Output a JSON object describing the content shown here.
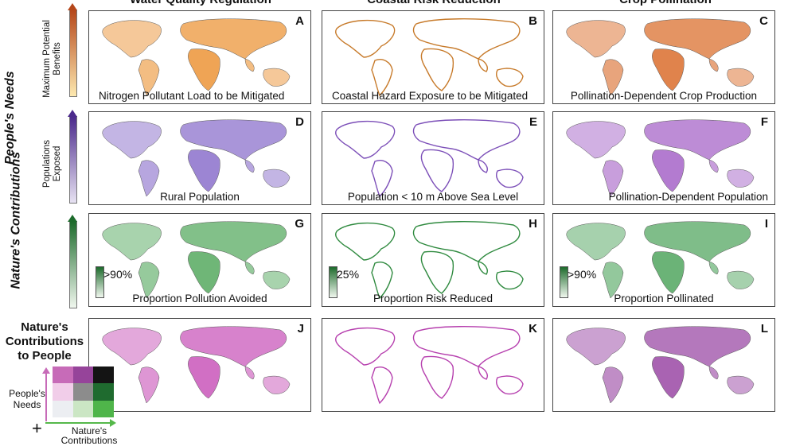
{
  "columns": [
    {
      "title": "Water Quality Regulation"
    },
    {
      "title": "Coastal Risk Reduction"
    },
    {
      "title": "Crop Pollination"
    }
  ],
  "rows": {
    "needs_title": "People's Needs",
    "contributions_title": "Nature's Contributions",
    "benefits_label": "Maximum Potential Benefits",
    "populations_label": "Populations Exposed"
  },
  "panels": [
    {
      "letter": "A",
      "caption": "Nitrogen Pollutant Load to be Mitigated",
      "color": "#e9861c"
    },
    {
      "letter": "B",
      "caption": "Coastal Hazard Exposure to be Mitigated",
      "color": "#c77a2a"
    },
    {
      "letter": "C",
      "caption": "Pollination-Dependent Crop Production",
      "color": "#d65a10"
    },
    {
      "letter": "D",
      "caption": "Rural Population",
      "color": "#7b5cc4"
    },
    {
      "letter": "E",
      "caption": "Population < 10 m Above Sea Level",
      "color": "#7c4fb8"
    },
    {
      "letter": "F",
      "caption": "Pollination-Dependent Population",
      "color": "#9a4fc0"
    },
    {
      "letter": "G",
      "caption": "Proportion Pollution Avoided",
      "color": "#3f9e4a",
      "legend": ">90%"
    },
    {
      "letter": "H",
      "caption": "Proportion Risk Reduced",
      "color": "#2f8a3f",
      "legend": "25%"
    },
    {
      "letter": "I",
      "caption": "Proportion Pollinated",
      "color": "#3a9a4a",
      "legend": ">90%"
    },
    {
      "letter": "J",
      "caption": "",
      "color": "#c23fb0"
    },
    {
      "letter": "K",
      "caption": "",
      "color": "#b63fae"
    },
    {
      "letter": "L",
      "caption": "",
      "color": "#8c2f98"
    }
  ],
  "legend": {
    "title": "Nature's Contributions to People",
    "people_needs": "People's Needs",
    "nature_contrib": "Nature's Contributions",
    "plus": "+",
    "matrix_colors": [
      [
        "#c76bb8",
        "#96449a",
        "#141414"
      ],
      [
        "#f1cde9",
        "#8c8c8c",
        "#1f6b2f"
      ],
      [
        "#eceef2",
        "#cbe6c4",
        "#4fb54a"
      ]
    ]
  },
  "colors": {
    "orange_top": "#b5471a",
    "orange_bottom": "#fde9b0",
    "purple_top": "#4b2a8c",
    "purple_bottom": "#e7e2f2",
    "green_top": "#1d6b2c",
    "green_bottom": "#f0f7ee"
  }
}
